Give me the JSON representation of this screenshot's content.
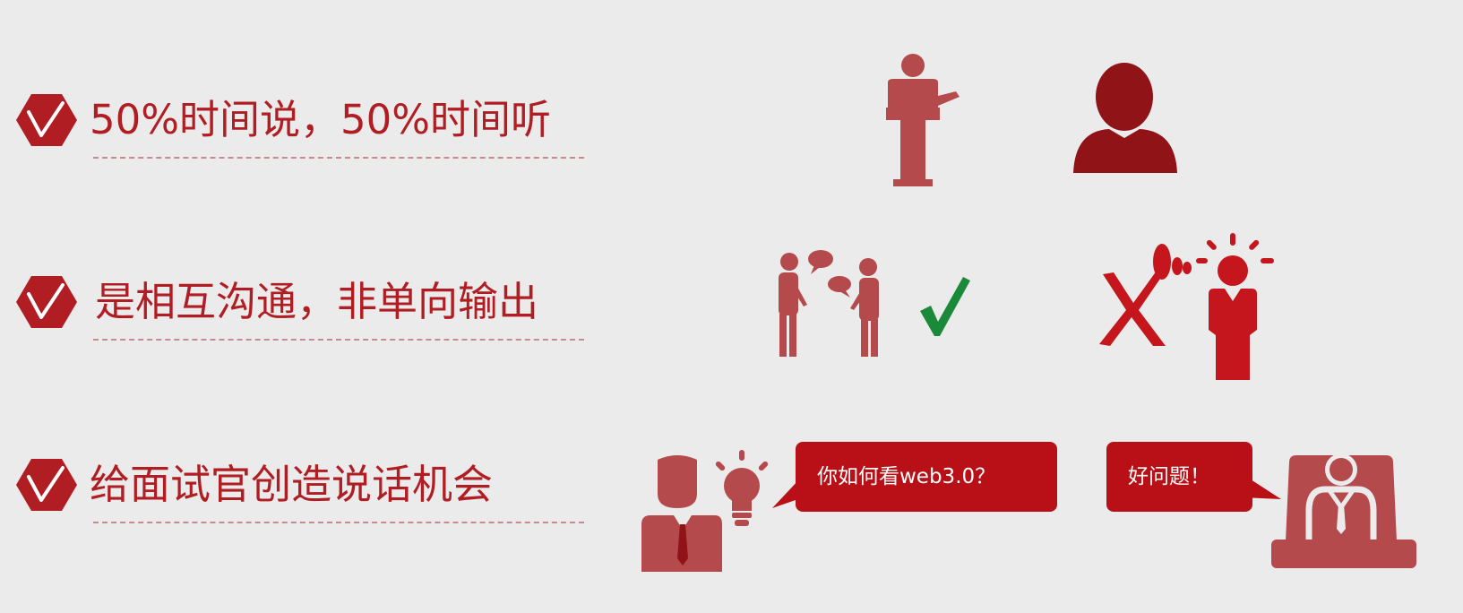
{
  "points": [
    {
      "text": "50%时间说，50%时间听"
    },
    {
      "text": "是相互沟通，非单向输出"
    },
    {
      "text": "给面试官创造说话机会"
    }
  ],
  "bubbles": {
    "candidate": "你如何看web3.0？",
    "interviewer": "好问题！"
  },
  "icons": {
    "row1": [
      "speaker-podium-icon",
      "listener-person-icon"
    ],
    "row2": [
      "conversation-icon",
      "checkmark-icon",
      "cross-mark-icon",
      "shouting-person-icon"
    ],
    "row3": [
      "candidate-icon",
      "lightbulb-icon",
      "interviewer-icon"
    ],
    "badge": "check-hexagon-icon"
  },
  "colors": {
    "primary_red": "#b01d23",
    "icon_red": "#b44a4c",
    "dark_red": "#8f1317",
    "bubble_red": "#b81016",
    "check_green": "#1a8a3a",
    "background": "#ebebeb"
  }
}
